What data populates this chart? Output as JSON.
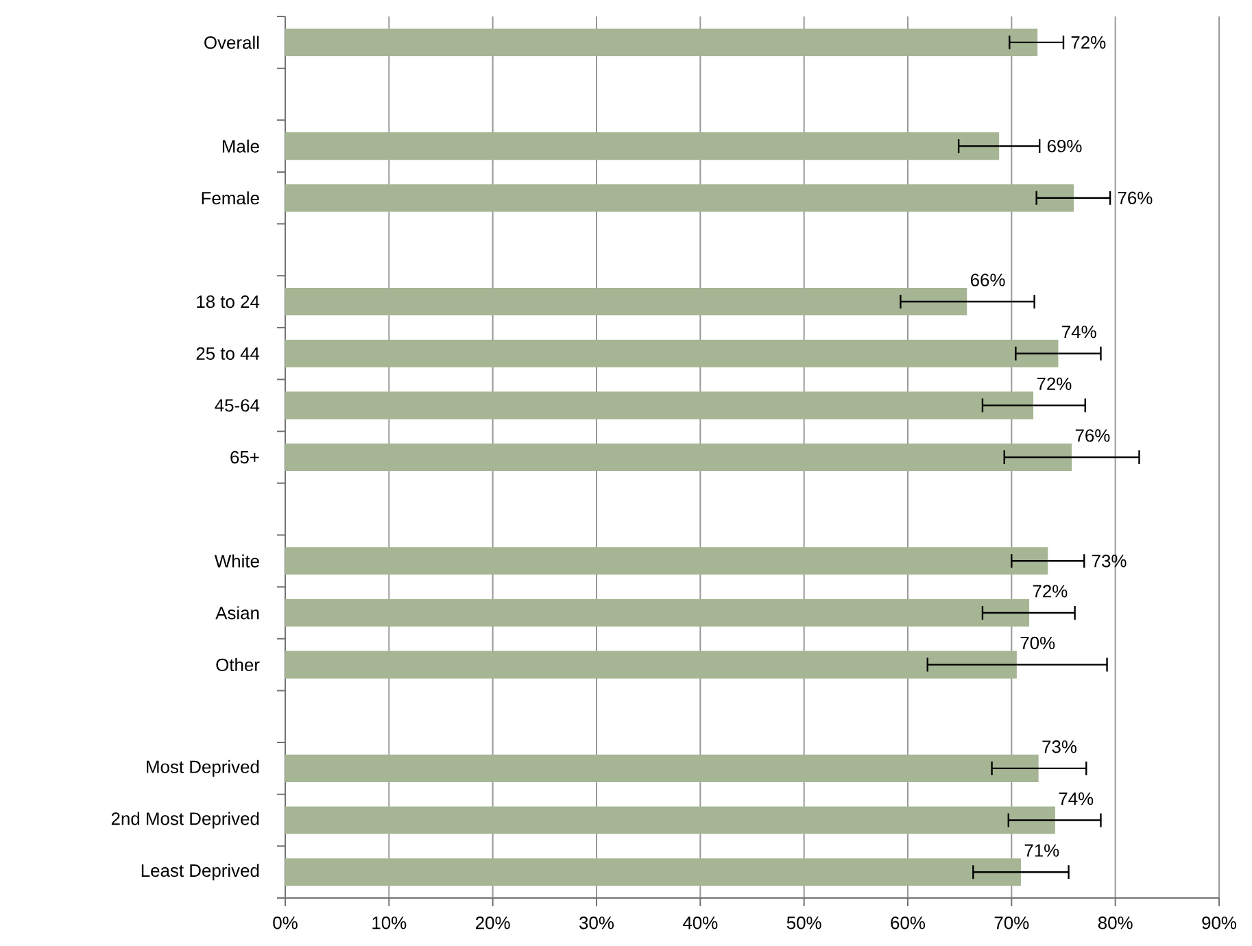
{
  "chart_data": {
    "type": "bar",
    "orientation": "horizontal",
    "grid": "x",
    "color": "#a6b593",
    "categories": [
      "Overall",
      null,
      "Male",
      "Female",
      null,
      "18 to 24",
      "25 to 44",
      "45-64",
      "65+",
      null,
      "White",
      "Asian",
      "Other",
      null,
      "Most Deprived",
      "2nd Most Deprived",
      "Least Deprived"
    ],
    "values": [
      72.5,
      null,
      68.8,
      76.0,
      null,
      65.7,
      74.5,
      72.1,
      75.8,
      null,
      73.5,
      71.7,
      70.5,
      null,
      72.6,
      74.2,
      70.9
    ],
    "errors": [
      [
        69.8,
        75.0
      ],
      null,
      [
        64.9,
        72.7
      ],
      [
        72.4,
        79.5
      ],
      null,
      [
        59.3,
        72.2
      ],
      [
        70.4,
        78.6
      ],
      [
        67.2,
        77.1
      ],
      [
        69.3,
        82.3
      ],
      null,
      [
        70.0,
        77.0
      ],
      [
        67.2,
        76.1
      ],
      [
        61.9,
        79.2
      ],
      null,
      [
        68.1,
        77.2
      ],
      [
        69.7,
        78.6
      ],
      [
        66.3,
        75.5
      ]
    ],
    "value_labels": [
      "72%",
      null,
      "69%",
      "76%",
      null,
      "66%",
      "74%",
      "72%",
      "76%",
      null,
      "73%",
      "72%",
      "70%",
      null,
      "73%",
      "74%",
      "71%"
    ],
    "xlim": [
      0,
      90
    ],
    "xticks": [
      {
        "value": 0,
        "label": "0%"
      },
      {
        "value": 10,
        "label": "10%"
      },
      {
        "value": 20,
        "label": "20%"
      },
      {
        "value": 30,
        "label": "30%"
      },
      {
        "value": 40,
        "label": "40%"
      },
      {
        "value": 50,
        "label": "50%"
      },
      {
        "value": 60,
        "label": "60%"
      },
      {
        "value": 70,
        "label": "70%"
      },
      {
        "value": 80,
        "label": "80%"
      },
      {
        "value": 90,
        "label": "90%"
      }
    ]
  }
}
